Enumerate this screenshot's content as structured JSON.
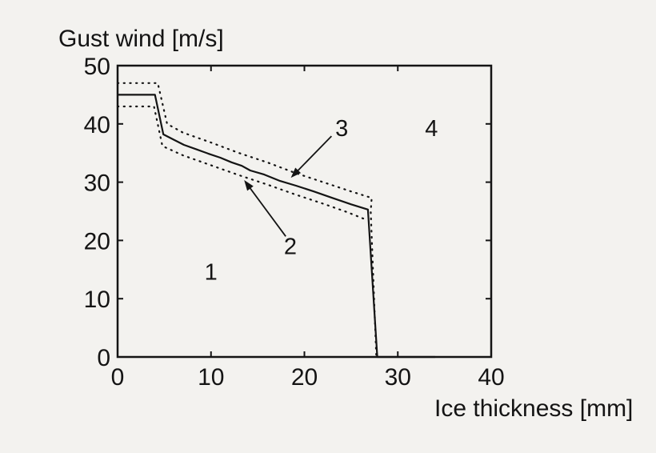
{
  "colors": {
    "background": "#f3f2ef",
    "ink": "#141414"
  },
  "chart_data": {
    "type": "line",
    "title": "",
    "ylabel": "Gust wind [m/s]",
    "xlabel": "Ice thickness [mm]",
    "xlim": [
      0,
      40
    ],
    "ylim": [
      0,
      50
    ],
    "xticks": [
      0,
      10,
      20,
      30,
      40
    ],
    "yticks": [
      0,
      10,
      20,
      30,
      40,
      50
    ],
    "grid": false,
    "legend": false,
    "box": true,
    "series": [
      {
        "name": "boundary-curve",
        "style": "solid",
        "points": [
          [
            0,
            45
          ],
          [
            4,
            45
          ],
          [
            4.9,
            38.2
          ],
          [
            6,
            37.3
          ],
          [
            7.1,
            36.4
          ],
          [
            8.5,
            35.6
          ],
          [
            9.7,
            34.9
          ],
          [
            11,
            34.2
          ],
          [
            12.2,
            33.4
          ],
          [
            13.3,
            32.8
          ],
          [
            14.2,
            32
          ],
          [
            15.7,
            31.3
          ],
          [
            17.4,
            30.2
          ],
          [
            19.1,
            29.4
          ],
          [
            21,
            28.4
          ],
          [
            23,
            27.3
          ],
          [
            25,
            26.2
          ],
          [
            26.8,
            25.3
          ],
          [
            27.8,
            0
          ],
          [
            34,
            0
          ]
        ]
      },
      {
        "name": "upper-confidence-bound",
        "style": "dotted",
        "points": [
          [
            0,
            47
          ],
          [
            4.3,
            47
          ],
          [
            5.3,
            40
          ],
          [
            7,
            38.5
          ],
          [
            10,
            36.8
          ],
          [
            13,
            35
          ],
          [
            16,
            33.4
          ],
          [
            19,
            31.6
          ],
          [
            22,
            30
          ],
          [
            25,
            28.4
          ],
          [
            27.2,
            27.3
          ],
          [
            27.1,
            25
          ],
          [
            27.7,
            0
          ]
        ]
      },
      {
        "name": "lower-confidence-bound",
        "style": "dotted",
        "points": [
          [
            0,
            43
          ],
          [
            3.9,
            43
          ],
          [
            4.8,
            36.2
          ],
          [
            7,
            34.6
          ],
          [
            10,
            32.9
          ],
          [
            13,
            31.2
          ],
          [
            16,
            29.6
          ],
          [
            19,
            27.9
          ],
          [
            22,
            26.3
          ],
          [
            24.5,
            24.9
          ],
          [
            26.4,
            23.7
          ]
        ]
      }
    ],
    "region_labels": [
      {
        "text": "1",
        "x": 10,
        "y": 14.6
      },
      {
        "text": "2",
        "x": 18.5,
        "y": 19
      },
      {
        "text": "3",
        "x": 24,
        "y": 39.3
      },
      {
        "text": "4",
        "x": 33.6,
        "y": 39.3
      }
    ],
    "arrows": [
      {
        "name": "arrow-to-curve-3",
        "from": [
          22.9,
          37.9
        ],
        "to": [
          18.55,
          30.75
        ]
      },
      {
        "name": "arrow-to-curve-2",
        "from": [
          18.0,
          20.7
        ],
        "to": [
          13.55,
          30.35
        ]
      }
    ]
  }
}
